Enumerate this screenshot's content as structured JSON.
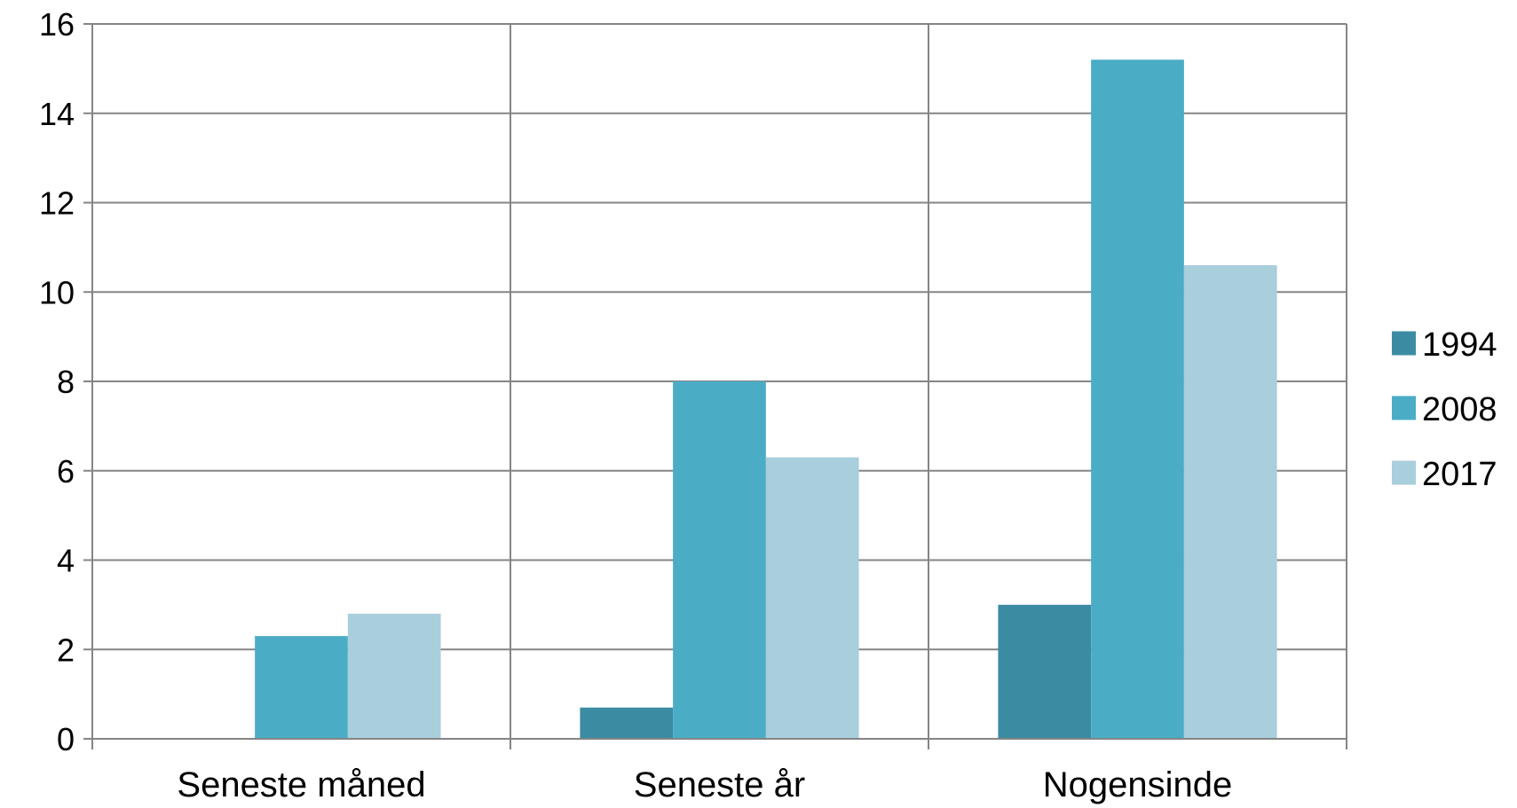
{
  "chart_data": {
    "type": "bar",
    "categories": [
      "Seneste måned",
      "Seneste år",
      "Nogensinde"
    ],
    "series": [
      {
        "name": "1994",
        "values": [
          0,
          0.7,
          3.0
        ],
        "color": "#3B8CA3"
      },
      {
        "name": "2008",
        "values": [
          2.3,
          8.0,
          15.2
        ],
        "color": "#4BACC6"
      },
      {
        "name": "2017",
        "values": [
          2.8,
          6.3,
          10.6
        ],
        "color": "#A9CEDC"
      }
    ],
    "y_ticks": [
      "0",
      "2",
      "4",
      "6",
      "8",
      "10",
      "12",
      "14",
      "16"
    ],
    "ylim": [
      0,
      16
    ],
    "title": "",
    "xlabel": "",
    "ylabel": "",
    "grid": true,
    "legend_position": "right"
  }
}
